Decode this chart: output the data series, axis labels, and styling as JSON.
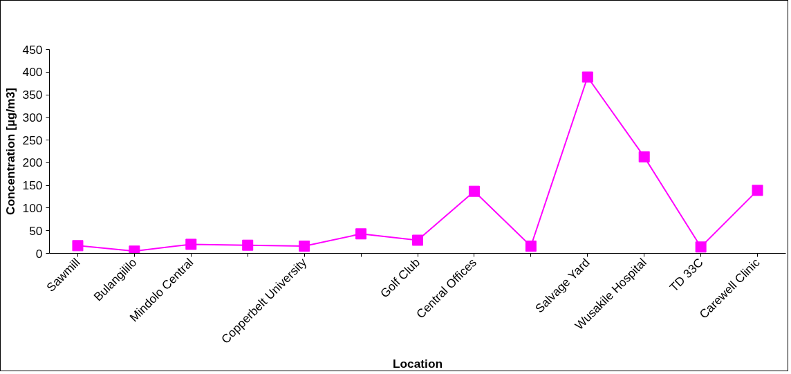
{
  "chart_data": {
    "type": "line",
    "xlabel": "Location",
    "ylabel": "Concentration [µg/m3]",
    "categories": [
      "Sawmill",
      "Bulangililo",
      "Mindolo Central",
      null,
      "Copperbelt University",
      null,
      "Golf Club",
      "Central Offices",
      null,
      "Salvage Yard",
      "Wusakile Hospital",
      "TD 33C",
      "Carewell Clinic"
    ],
    "series": [
      {
        "color": "#ff00ff",
        "values": [
          17,
          5,
          20,
          18,
          16,
          43,
          29,
          137,
          16,
          389,
          213,
          14,
          139
        ]
      }
    ],
    "ylim": [
      0,
      450
    ],
    "yticks": [
      0,
      50,
      100,
      150,
      200,
      250,
      300,
      350,
      400,
      450
    ],
    "grid": false,
    "marker": "square",
    "line_style": "solid"
  }
}
